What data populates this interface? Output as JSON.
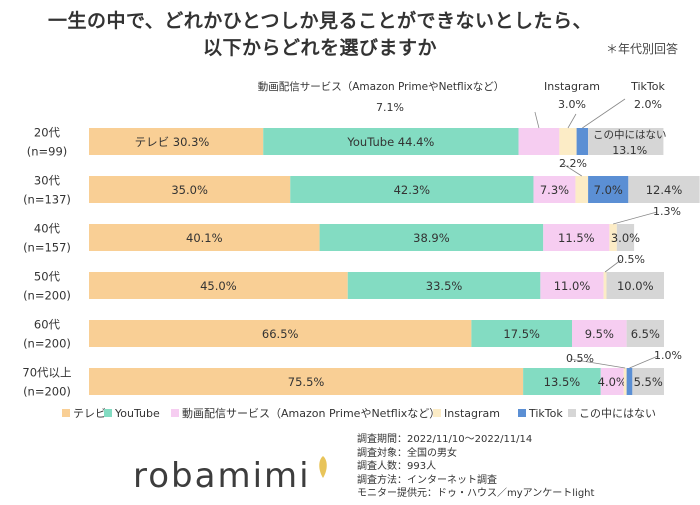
{
  "header": {
    "title_line1": "一生の中で、どれかひとつしか見ることができないとしたら、",
    "title_line2": "以下からどれを選びますか",
    "note": "＊年代別回答"
  },
  "chart_data": {
    "type": "bar",
    "orientation": "horizontal",
    "stacked": "100%",
    "categories": [
      "20代\n(n=99)",
      "30代\n(n=137)",
      "40代\n(n=157)",
      "50代\n(n=200)",
      "60代\n(n=200)",
      "70代以上\n(n=200)"
    ],
    "series": [
      {
        "name": "テレビ",
        "color": "#f9cf95",
        "values": [
          30.3,
          35.0,
          40.1,
          45.0,
          66.5,
          75.5
        ]
      },
      {
        "name": "YouTube",
        "color": "#83dcc2",
        "values": [
          44.4,
          42.3,
          38.9,
          33.5,
          17.5,
          13.5
        ]
      },
      {
        "name": "動画配信サービス（Amazon PrimeやNetflixなど）",
        "color": "#f6cdf1",
        "values": [
          7.1,
          7.3,
          11.5,
          11.0,
          9.5,
          4.0
        ]
      },
      {
        "name": "Instagram",
        "color": "#fcecc6",
        "values": [
          3.0,
          2.2,
          1.3,
          0.5,
          0.0,
          0.5
        ]
      },
      {
        "name": "TikTok",
        "color": "#5b8fd4",
        "values": [
          2.0,
          7.0,
          0.0,
          0.0,
          0.0,
          1.0
        ]
      },
      {
        "name": "この中にはない",
        "color": "#d6d6d6",
        "values": [
          13.1,
          12.4,
          3.0,
          10.0,
          6.5,
          5.5
        ]
      }
    ],
    "labels": [
      [
        "テレビ 30.3%",
        "YouTube 44.4%",
        "",
        "",
        "",
        ""
      ],
      [
        "35.0%",
        "42.3%",
        "7.3%",
        "",
        "7.0%",
        "12.4%"
      ],
      [
        "40.1%",
        "38.9%",
        "11.5%",
        "",
        "",
        "3.0%"
      ],
      [
        "45.0%",
        "33.5%",
        "11.0%",
        "",
        "",
        "10.0%"
      ],
      [
        "66.5%",
        "17.5%",
        "9.5%",
        "",
        "",
        "6.5%"
      ],
      [
        "75.5%",
        "13.5%",
        "4.0%",
        "",
        "",
        "5.5%"
      ]
    ],
    "callouts": [
      {
        "text": "動画配信サービス（Amazon PrimeやNetflixなど）",
        "value": "7.1%",
        "row": 0,
        "series": 2
      },
      {
        "text": "Instagram",
        "value": "3.0%",
        "row": 0,
        "series": 3
      },
      {
        "text": "TikTok",
        "value": "2.0%",
        "row": 0,
        "series": 4
      },
      {
        "text": "この中にはない",
        "value": "13.1%",
        "row": 0,
        "series": 5
      },
      {
        "text": "",
        "value": "2.2%",
        "row": 1,
        "series": 3
      },
      {
        "text": "",
        "value": "1.3%",
        "row": 2,
        "series": 3
      },
      {
        "text": "",
        "value": "0.5%",
        "row": 3,
        "series": 3
      },
      {
        "text": "",
        "value": "0.5%",
        "row": 5,
        "series": 3
      },
      {
        "text": "",
        "value": "1.0%",
        "row": 5,
        "series": 4
      }
    ],
    "xlim": [
      0,
      100
    ],
    "legend_position": "bottom"
  },
  "survey_info": [
    "調査期間：2022/11/10～2022/11/14",
    "調査対象：全国の男女",
    "調査人数：993人",
    "調査方法：インターネット調査",
    "モニター提供元：ドゥ・ハウス／myアンケートlight"
  ],
  "logo": "robamimi"
}
